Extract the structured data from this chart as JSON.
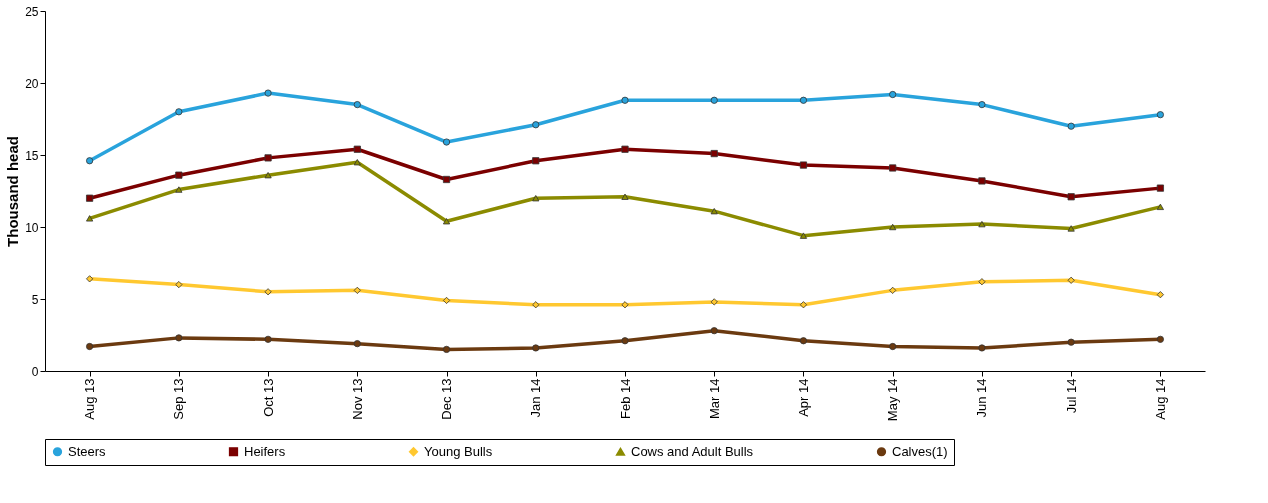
{
  "chart_data": {
    "type": "line",
    "ylabel": "Thousand head",
    "categories": [
      "Aug 13",
      "Sep 13",
      "Oct 13",
      "Nov 13",
      "Dec 13",
      "Jan 14",
      "Feb 14",
      "Mar 14",
      "Apr 14",
      "May 14",
      "Jun 14",
      "Jul 14",
      "Aug 14"
    ],
    "ylim": [
      0,
      25
    ],
    "yticks": [
      0,
      5,
      10,
      15,
      20,
      25
    ],
    "grid": false,
    "legend": "bottom",
    "line_style": "solid",
    "series": [
      {
        "name": "Steers",
        "color": "#29a3dc",
        "marker": "circle",
        "values": [
          14.6,
          18.0,
          19.3,
          18.5,
          15.9,
          17.1,
          18.8,
          18.8,
          18.8,
          19.2,
          18.5,
          17.0,
          17.8
        ]
      },
      {
        "name": "Heifers",
        "color": "#7b0000",
        "marker": "square",
        "values": [
          12.0,
          13.6,
          14.8,
          15.4,
          13.3,
          14.6,
          15.4,
          15.1,
          14.3,
          14.1,
          13.2,
          12.1,
          12.7
        ]
      },
      {
        "name": "Young Bulls",
        "color": "#ffc830",
        "marker": "diamond",
        "values": [
          6.4,
          6.0,
          5.5,
          5.6,
          4.9,
          4.6,
          4.6,
          4.8,
          4.6,
          5.6,
          6.2,
          6.3,
          5.3
        ]
      },
      {
        "name": "Cows and Adult Bulls",
        "color": "#8b8b00",
        "marker": "triangle",
        "values": [
          10.6,
          12.6,
          13.6,
          14.5,
          10.4,
          12.0,
          12.1,
          11.1,
          9.4,
          10.0,
          10.2,
          9.9,
          11.4
        ]
      },
      {
        "name": "Calves(1)",
        "color": "#6b3a10",
        "marker": "circle",
        "values": [
          1.7,
          2.3,
          2.2,
          1.9,
          1.5,
          1.6,
          2.1,
          2.8,
          2.1,
          1.7,
          1.6,
          2.0,
          2.2
        ]
      }
    ]
  }
}
